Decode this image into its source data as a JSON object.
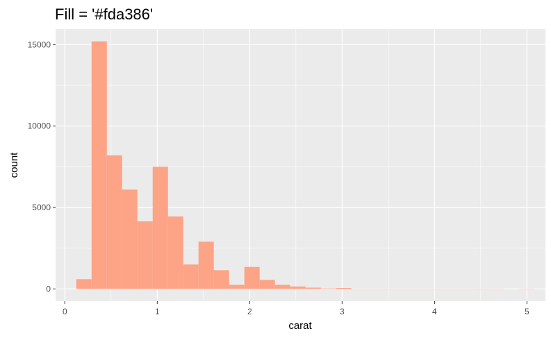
{
  "chart_data": {
    "type": "bar",
    "title": "Fill = '#fda386'",
    "xlabel": "carat",
    "ylabel": "count",
    "xlim": [
      -0.1,
      5.2
    ],
    "ylim": [
      -750,
      15950
    ],
    "x_ticks": [
      0,
      1,
      2,
      3,
      4,
      5
    ],
    "x_tick_labels": [
      "0",
      "1",
      "2",
      "3",
      "4",
      "5"
    ],
    "y_ticks": [
      0,
      5000,
      10000,
      15000
    ],
    "y_tick_labels": [
      "0",
      "5000",
      "10000",
      "15000"
    ],
    "grid": true,
    "legend": "none",
    "colors": {
      "fill": "#fda386",
      "panel": "#ebebeb",
      "grid": "#ffffff"
    },
    "bin_width": 0.1653,
    "bin_starts": [
      0.124,
      0.2893,
      0.4546,
      0.6199,
      0.7852,
      0.9505,
      1.1158,
      1.2811,
      1.4464,
      1.6117,
      1.777,
      1.9423,
      2.1076,
      2.2729,
      2.4382,
      2.6035,
      2.7688,
      2.9341,
      3.0994,
      3.2647,
      3.43,
      3.5953,
      3.7606,
      3.9259,
      4.0912,
      4.2565,
      4.4218,
      4.5871,
      4.7524,
      4.9177
    ],
    "values": [
      600,
      15200,
      8200,
      6100,
      4150,
      7500,
      4450,
      1500,
      2900,
      1150,
      250,
      1350,
      550,
      250,
      150,
      80,
      30,
      60,
      15,
      10,
      5,
      3,
      2,
      2,
      1,
      1,
      1,
      1,
      0,
      1
    ]
  }
}
